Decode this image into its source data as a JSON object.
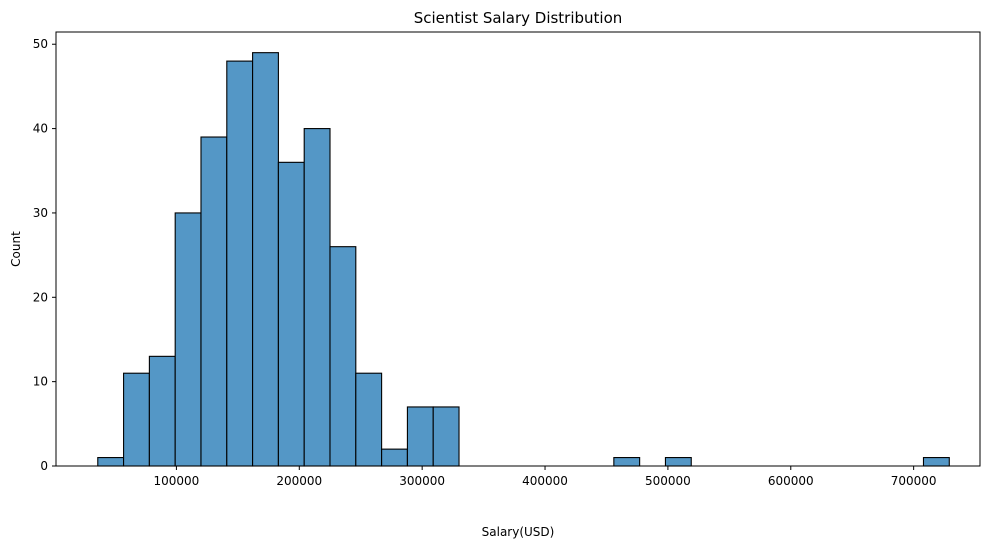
{
  "chart_data": {
    "type": "bar",
    "title": "Scientist Salary Distribution",
    "xlabel": "Salary(USD)",
    "ylabel": "Count",
    "xlim": [
      2000,
      754000
    ],
    "ylim": [
      0,
      51.45
    ],
    "xticks": [
      100000,
      200000,
      300000,
      400000,
      500000,
      600000,
      700000
    ],
    "xtick_labels": [
      "100000",
      "200000",
      "300000",
      "400000",
      "500000",
      "600000",
      "700000"
    ],
    "yticks": [
      0,
      10,
      20,
      30,
      40,
      50
    ],
    "ytick_labels": [
      "0",
      "10",
      "20",
      "30",
      "40",
      "50"
    ],
    "bin_start": 36000,
    "bin_width": 21000,
    "values": [
      1,
      11,
      13,
      30,
      39,
      48,
      49,
      36,
      40,
      26,
      11,
      2,
      7,
      7,
      0,
      0,
      0,
      0,
      0,
      0,
      1,
      0,
      1,
      0,
      0,
      0,
      0,
      0,
      0,
      0,
      0,
      0,
      1
    ],
    "bar_color": "#5497c6",
    "edge_color": "#000000",
    "grid": false,
    "legend": "none"
  }
}
